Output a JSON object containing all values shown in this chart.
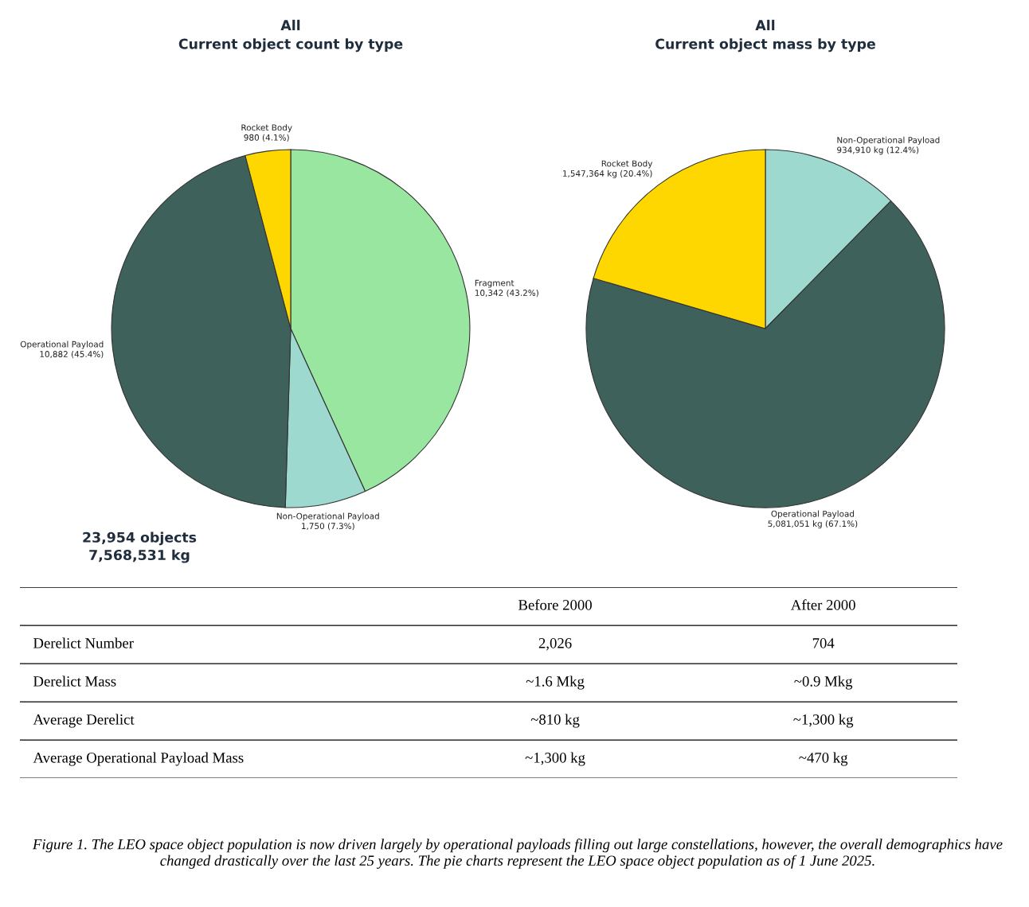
{
  "chart_data": [
    {
      "type": "pie",
      "title": "All\nCurrent object count by type",
      "categories": [
        "Fragment",
        "Non-Operational Payload",
        "Operational Payload",
        "Rocket Body"
      ],
      "values": [
        10342,
        1750,
        10882,
        980
      ],
      "value_labels": [
        "10,342 (43.2%)",
        "1,750 (7.3%)",
        "10,882 (45.4%)",
        "980 (4.1%)"
      ],
      "colors": [
        "#98e6a0",
        "#9dd9ce",
        "#3f615c",
        "#ffd700"
      ],
      "annotations": [
        "23,954 objects\n7,568,531 kg"
      ]
    },
    {
      "type": "pie",
      "title": "All\nCurrent object mass by type",
      "categories": [
        "Non-Operational Payload",
        "Operational Payload",
        "Rocket Body"
      ],
      "values": [
        934910,
        5081051,
        1547364
      ],
      "value_labels": [
        "934,910 kg (12.4%)",
        "5,081,051 kg (67.1%)",
        "1,547,364 kg (20.4%)"
      ],
      "colors": [
        "#9dd9ce",
        "#3f615c",
        "#ffd700"
      ]
    },
    {
      "type": "other",
      "categories": [
        null,
        "Before 2000",
        "After 2000"
      ],
      "y_categories": [
        "Derelict Number",
        "Derelict Mass",
        "Average Derelict",
        "Average Operational Payload Mass"
      ],
      "cell_labels": [
        [
          "2,026",
          "704"
        ],
        [
          "~1.6 Mkg",
          "~0.9 Mkg"
        ],
        [
          "~810 kg",
          "~1,300 kg"
        ],
        [
          "~1,300 kg",
          "~470 kg"
        ]
      ],
      "annotations": [
        "Figure 1. The LEO space object population is now driven largely by operational payloads filling out large constellations, however, the overall demographics have changed drastically over the last 25 years. The pie charts represent the LEO space object population as of 1 June 2025."
      ]
    }
  ]
}
